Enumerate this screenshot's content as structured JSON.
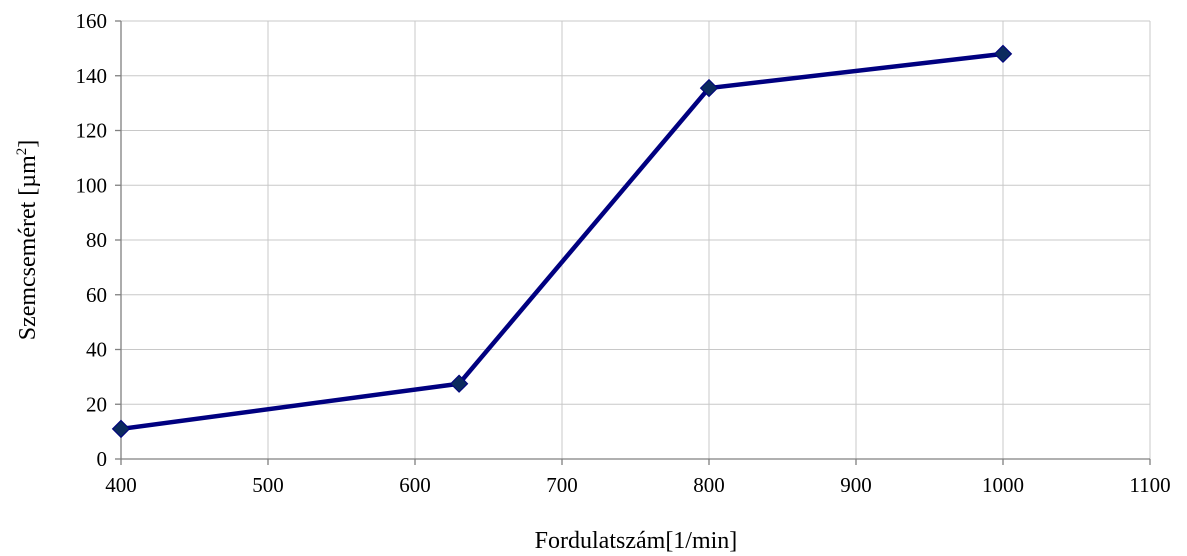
{
  "chart_data": {
    "type": "line",
    "title": "",
    "xlabel": "Fordulatszám[1/min]",
    "ylabel": {
      "main": "Szemcseméret [µm",
      "sup": "2",
      "end": "]"
    },
    "xlim": [
      400,
      1100
    ],
    "ylim": [
      0,
      160
    ],
    "xticks": [
      400,
      500,
      600,
      700,
      800,
      900,
      1000,
      1100
    ],
    "yticks": [
      0,
      20,
      40,
      60,
      80,
      100,
      120,
      140,
      160
    ],
    "grid": true,
    "legend": "none",
    "series": [
      {
        "color": "#000080",
        "marker": "diamond",
        "marker_color": "#0b2a5e",
        "points": [
          {
            "x": 400,
            "y": 11
          },
          {
            "x": 630,
            "y": 27.5
          },
          {
            "x": 800,
            "y": 135.5
          },
          {
            "x": 1000,
            "y": 148
          }
        ]
      }
    ]
  }
}
